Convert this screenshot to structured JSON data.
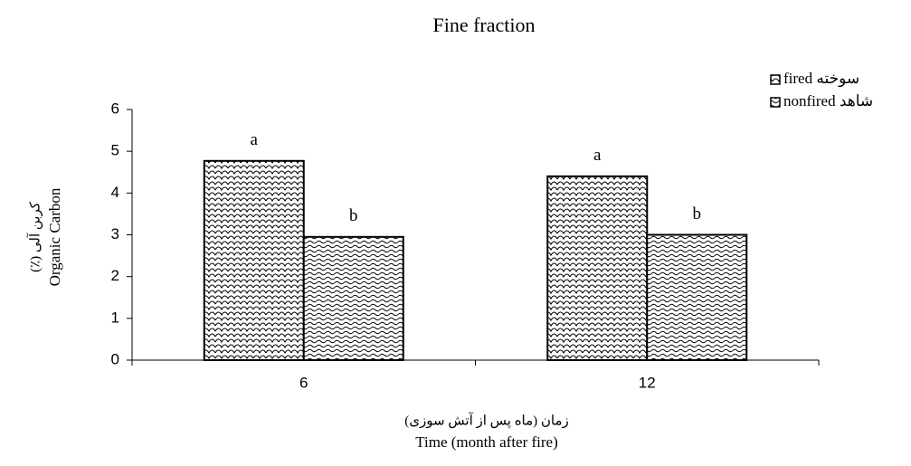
{
  "chart_data": {
    "type": "bar",
    "title": "Fine fraction",
    "ylabel": [
      "کربن آلی (٪)",
      "Organic Carbon"
    ],
    "xlabel": [
      "زمان (ماه پس از آتش سوزی)",
      "Time (month after fire)"
    ],
    "categories": [
      "6",
      "12"
    ],
    "series": [
      {
        "name": "fired سوخته",
        "color": "#000000",
        "pattern": "scales",
        "values": [
          4.77,
          4.4
        ],
        "annotations": [
          "a",
          "a"
        ]
      },
      {
        "name": "nonfired شاهد",
        "color": "#000000",
        "pattern": "waves",
        "values": [
          2.95,
          3.0
        ],
        "annotations": [
          "b",
          "b"
        ]
      }
    ],
    "ylim": [
      0,
      6
    ],
    "yticks": [
      0,
      1,
      2,
      3,
      4,
      5,
      6
    ],
    "grid": false,
    "legend": "top-right"
  }
}
